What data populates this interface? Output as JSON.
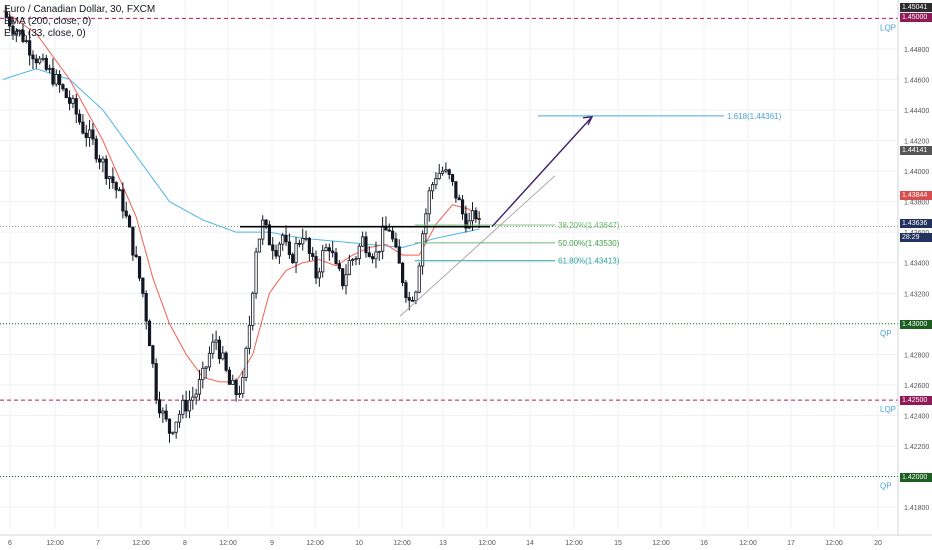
{
  "legend": {
    "symbol": "Euro / Canadian Dollar, 30, FXCM",
    "ema1": "EMA (200, close, 0)",
    "ema2": "EMA (33, close, 0)"
  },
  "colors": {
    "candle": "#131722",
    "ema200": "#4db6e8",
    "ema33": "#f0604f",
    "lqp": "#c2185b",
    "qp": "#1b5e20",
    "fib": "#26a69a",
    "arrow": "#3f1e6e",
    "current": "#22325e"
  },
  "price_labels": [
    {
      "text": "1.45041",
      "bg": "#2c2c2c"
    },
    {
      "text": "1.45000",
      "bg": "#8e1a58"
    },
    {
      "text": "1.44141",
      "bg": "#555555"
    },
    {
      "text": "1.43844",
      "bg": "#d84d4d"
    },
    {
      "text": "1.43636",
      "bg": "#22325e"
    },
    {
      "text": "28:29",
      "bg": "#22325e"
    },
    {
      "text": "1.43000",
      "bg": "#1b5e20"
    },
    {
      "text": "1.42500",
      "bg": "#8e1a58"
    },
    {
      "text": "1.42000",
      "bg": "#1b5e20"
    }
  ],
  "level_tags": {
    "lqp_top": "LQP",
    "qp_mid": "QP",
    "lqp_bottom": "LQP",
    "qp_bottom": "QP"
  },
  "fib_labels": {
    "ext": "1.618(1.44361)",
    "f382": "38.20%(1.43647)",
    "f500": "50.00%(1.43530)",
    "f618": "61.80%(1.43413)"
  },
  "chart_data": {
    "type": "candlestick",
    "title": "Euro / Canadian Dollar, 30, FXCM",
    "ylim": [
      1.4165,
      1.4512
    ],
    "y_ticks": [
      "1.45000",
      "1.44800",
      "1.44600",
      "1.44400",
      "1.44200",
      "1.44000",
      "1.43800",
      "1.43600",
      "1.43400",
      "1.43200",
      "1.43000",
      "1.42800",
      "1.42600",
      "1.42400",
      "1.42200",
      "1.42000",
      "1.41800"
    ],
    "x_ticks": [
      "6",
      "12:00",
      "7",
      "12:00",
      "8",
      "12:00",
      "9",
      "12:00",
      "10",
      "12:00",
      "13",
      "12:00",
      "14",
      "12:00",
      "15",
      "12:00",
      "16",
      "12:00",
      "17",
      "12:00",
      "20"
    ],
    "levels": {
      "lqp_top": 1.45,
      "qp_mid": 1.43,
      "lqp_bottom": 1.425,
      "qp_bottom": 1.42,
      "resistance": 1.43636
    },
    "fibonacci": {
      "ext_1618": 1.44361,
      "f382": 1.43647,
      "f500": 1.4353,
      "f618": 1.43413
    },
    "close_path": [
      [
        0,
        1.4504
      ],
      [
        3,
        1.4495
      ],
      [
        6,
        1.4488
      ],
      [
        9,
        1.4478
      ],
      [
        12,
        1.4468
      ],
      [
        15,
        1.4462
      ],
      [
        18,
        1.4452
      ],
      [
        21,
        1.4442
      ],
      [
        24,
        1.4428
      ],
      [
        27,
        1.4418
      ],
      [
        30,
        1.4405
      ],
      [
        33,
        1.4393
      ],
      [
        36,
        1.4378
      ],
      [
        39,
        1.435
      ],
      [
        42,
        1.432
      ],
      [
        44,
        1.429
      ],
      [
        46,
        1.4255
      ],
      [
        48,
        1.424
      ],
      [
        50,
        1.423
      ],
      [
        52,
        1.4238
      ],
      [
        54,
        1.4245
      ],
      [
        56,
        1.425
      ],
      [
        58,
        1.4255
      ],
      [
        60,
        1.4265
      ],
      [
        62,
        1.428
      ],
      [
        64,
        1.429
      ],
      [
        66,
        1.4275
      ],
      [
        68,
        1.426
      ],
      [
        70,
        1.4255
      ],
      [
        72,
        1.426
      ],
      [
        74,
        1.43
      ],
      [
        76,
        1.435
      ],
      [
        78,
        1.4365
      ],
      [
        80,
        1.4355
      ],
      [
        82,
        1.435
      ],
      [
        84,
        1.4358
      ],
      [
        86,
        1.434
      ],
      [
        88,
        1.435
      ],
      [
        90,
        1.436
      ],
      [
        92,
        1.4345
      ],
      [
        94,
        1.4332
      ],
      [
        96,
        1.4345
      ],
      [
        98,
        1.4352
      ],
      [
        100,
        1.4335
      ],
      [
        102,
        1.4328
      ],
      [
        104,
        1.434
      ],
      [
        106,
        1.4345
      ],
      [
        108,
        1.4355
      ],
      [
        110,
        1.435
      ],
      [
        112,
        1.4345
      ],
      [
        114,
        1.4358
      ],
      [
        116,
        1.4363
      ],
      [
        118,
        1.4345
      ],
      [
        120,
        1.433
      ],
      [
        122,
        1.4315
      ],
      [
        124,
        1.4325
      ],
      [
        126,
        1.436
      ],
      [
        128,
        1.4385
      ],
      [
        130,
        1.4398
      ],
      [
        132,
        1.44
      ],
      [
        134,
        1.4395
      ],
      [
        136,
        1.4385
      ],
      [
        138,
        1.4372
      ],
      [
        140,
        1.4365
      ],
      [
        142,
        1.4372
      ],
      [
        143,
        1.4364
      ]
    ],
    "ema200_path": [
      [
        0,
        1.446
      ],
      [
        10,
        1.4467
      ],
      [
        20,
        1.446
      ],
      [
        30,
        1.444
      ],
      [
        40,
        1.441
      ],
      [
        50,
        1.438
      ],
      [
        60,
        1.4368
      ],
      [
        70,
        1.436
      ],
      [
        80,
        1.436
      ],
      [
        90,
        1.4356
      ],
      [
        100,
        1.4354
      ],
      [
        110,
        1.4352
      ],
      [
        120,
        1.435
      ],
      [
        130,
        1.4356
      ],
      [
        143,
        1.4362
      ]
    ],
    "ema33_path": [
      [
        0,
        1.4505
      ],
      [
        10,
        1.449
      ],
      [
        20,
        1.446
      ],
      [
        30,
        1.442
      ],
      [
        40,
        1.437
      ],
      [
        45,
        1.433
      ],
      [
        50,
        1.43
      ],
      [
        55,
        1.428
      ],
      [
        60,
        1.4265
      ],
      [
        65,
        1.4262
      ],
      [
        70,
        1.4262
      ],
      [
        75,
        1.428
      ],
      [
        80,
        1.432
      ],
      [
        85,
        1.4335
      ],
      [
        90,
        1.434
      ],
      [
        95,
        1.4342
      ],
      [
        100,
        1.4338
      ],
      [
        105,
        1.4345
      ],
      [
        110,
        1.435
      ],
      [
        115,
        1.4352
      ],
      [
        120,
        1.4345
      ],
      [
        125,
        1.4345
      ],
      [
        130,
        1.4365
      ],
      [
        135,
        1.4378
      ],
      [
        140,
        1.4375
      ],
      [
        143,
        1.4368
      ]
    ]
  }
}
